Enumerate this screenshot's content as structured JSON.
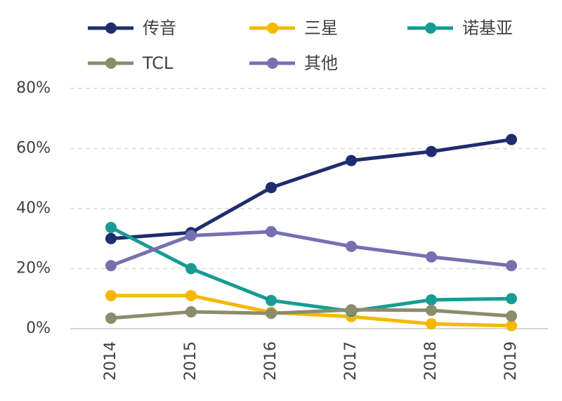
{
  "chart_data": {
    "type": "line",
    "categories": [
      "2014",
      "2015",
      "2016",
      "2017",
      "2018",
      "2019"
    ],
    "series": [
      {
        "name": "传音",
        "color": "#1f2d6e",
        "values": [
          30,
          32,
          47,
          56,
          59,
          63
        ]
      },
      {
        "name": "三星",
        "color": "#f5b800",
        "values": [
          11,
          11,
          5.4,
          4,
          1.6,
          1
        ]
      },
      {
        "name": "诺基亚",
        "color": "#179c94",
        "values": [
          33.7,
          20,
          9.4,
          5.8,
          9.6,
          10
        ]
      },
      {
        "name": "TCL",
        "color": "#8c8c6c",
        "values": [
          3.5,
          5.6,
          5.1,
          6.3,
          6.1,
          4.2
        ]
      },
      {
        "name": "其他",
        "color": "#7670b0",
        "values": [
          21,
          31,
          32.3,
          27.4,
          23.9,
          21
        ]
      }
    ],
    "ylim": [
      0,
      80
    ],
    "yticks": [
      {
        "value": 0,
        "label": "0%"
      },
      {
        "value": 20,
        "label": "20%"
      },
      {
        "value": 40,
        "label": "40%"
      },
      {
        "value": 60,
        "label": "60%"
      },
      {
        "value": 80,
        "label": "80%"
      }
    ],
    "grid": true,
    "legend_position": "top"
  }
}
